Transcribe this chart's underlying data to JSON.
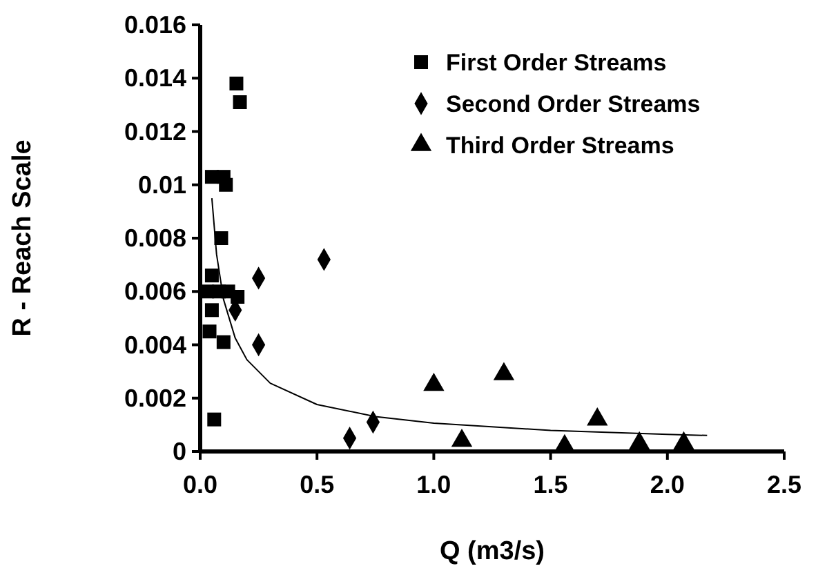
{
  "chart_data": {
    "type": "scatter",
    "xlabel": "Q (m3/s)",
    "ylabel": "R - Reach Scale",
    "xlim": [
      0,
      2.5
    ],
    "ylim": [
      0,
      0.016
    ],
    "xticks": [
      {
        "value": 0,
        "label": "0.0"
      },
      {
        "value": 0.5,
        "label": "0.5"
      },
      {
        "value": 1,
        "label": "1.0"
      },
      {
        "value": 1.5,
        "label": "1.5"
      },
      {
        "value": 2,
        "label": "2.0"
      },
      {
        "value": 2.5,
        "label": "2.5"
      }
    ],
    "yticks": [
      0,
      0.002,
      0.004,
      0.006,
      0.008,
      0.01,
      0.012,
      0.014,
      0.016
    ],
    "grid": false,
    "legend": "top right",
    "series": [
      {
        "name": "First Order Streams",
        "color": "#000000",
        "marker": "square",
        "x": [
          0.155,
          0.17,
          0.05,
          0.1,
          0.11,
          0.09,
          0.05,
          0.03,
          0.08,
          0.12,
          0.16,
          0.05,
          0.04,
          0.1,
          0.06
        ],
        "values": [
          0.0138,
          0.0131,
          0.0103,
          0.0103,
          0.01,
          0.008,
          0.0066,
          0.006,
          0.006,
          0.006,
          0.0058,
          0.0053,
          0.0045,
          0.0041,
          0.0012
        ]
      },
      {
        "name": "Second Order Streams",
        "color": "#000000",
        "marker": "diamond",
        "x": [
          0.15,
          0.25,
          0.53,
          0.25,
          0.64,
          0.74
        ],
        "values": [
          0.0053,
          0.0065,
          0.0072,
          0.004,
          0.0005,
          0.0011
        ]
      },
      {
        "name": "Third Order Streams",
        "color": "#000000",
        "marker": "triangle",
        "x": [
          1.0,
          1.3,
          1.12,
          1.7,
          1.56,
          1.88,
          2.07
        ],
        "values": [
          0.0025,
          0.0029,
          0.0004,
          0.0012,
          0.0002,
          0.0003,
          0.0003
        ]
      },
      {
        "type": "line",
        "color": "#000000",
        "marker": "none",
        "x": [
          0.05,
          0.07,
          0.1,
          0.15,
          0.2,
          0.3,
          0.5,
          0.75,
          1,
          1.5,
          2,
          2.17
        ],
        "values": [
          0.0095,
          0.0074,
          0.0057,
          0.00425,
          0.00344,
          0.00256,
          0.00176,
          0.00131,
          0.00106,
          0.00079,
          0.00064,
          0.0006
        ]
      }
    ]
  }
}
